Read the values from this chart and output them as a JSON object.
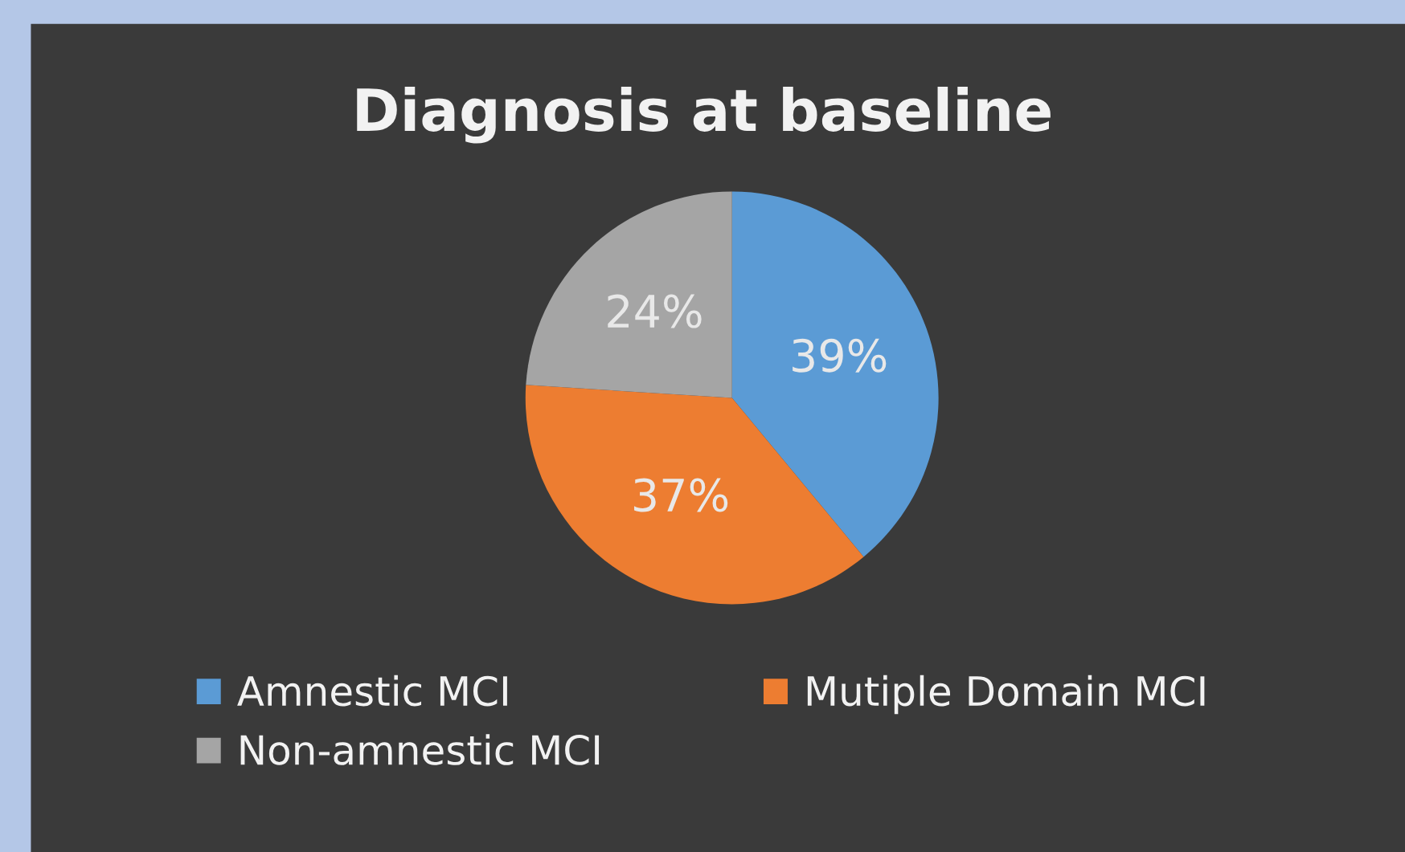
{
  "chart_data": {
    "type": "pie",
    "title": "Diagnosis at baseline",
    "categories": [
      "Amnestic MCI",
      "Mutiple Domain MCI",
      "Non-amnestic MCI"
    ],
    "values": [
      39,
      37,
      24
    ],
    "value_labels": [
      "39%",
      "37%",
      "24%"
    ],
    "colors": [
      "#5b9bd5",
      "#ed7d31",
      "#a5a5a5"
    ],
    "legend": "bottom"
  }
}
